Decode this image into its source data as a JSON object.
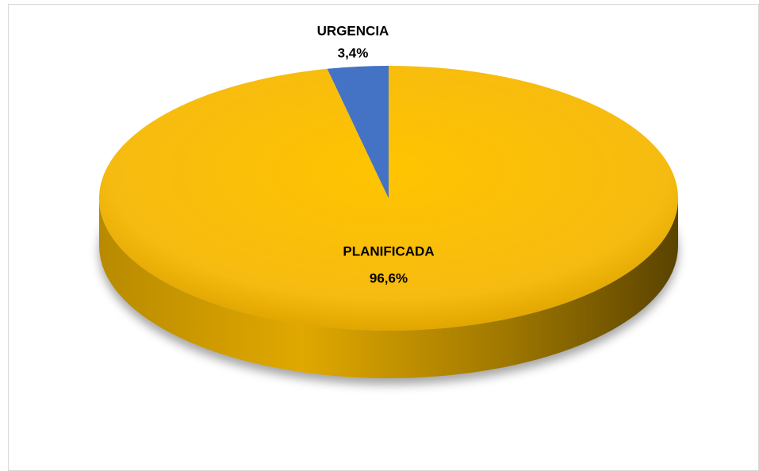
{
  "chart_data": {
    "type": "pie",
    "categories": [
      "PLANIFICADA",
      "URGENCIA"
    ],
    "values": [
      96.6,
      3.4
    ],
    "value_labels": [
      "96,6%",
      "3,4%"
    ],
    "colors": [
      "#ffc000",
      "#4472c4"
    ]
  }
}
